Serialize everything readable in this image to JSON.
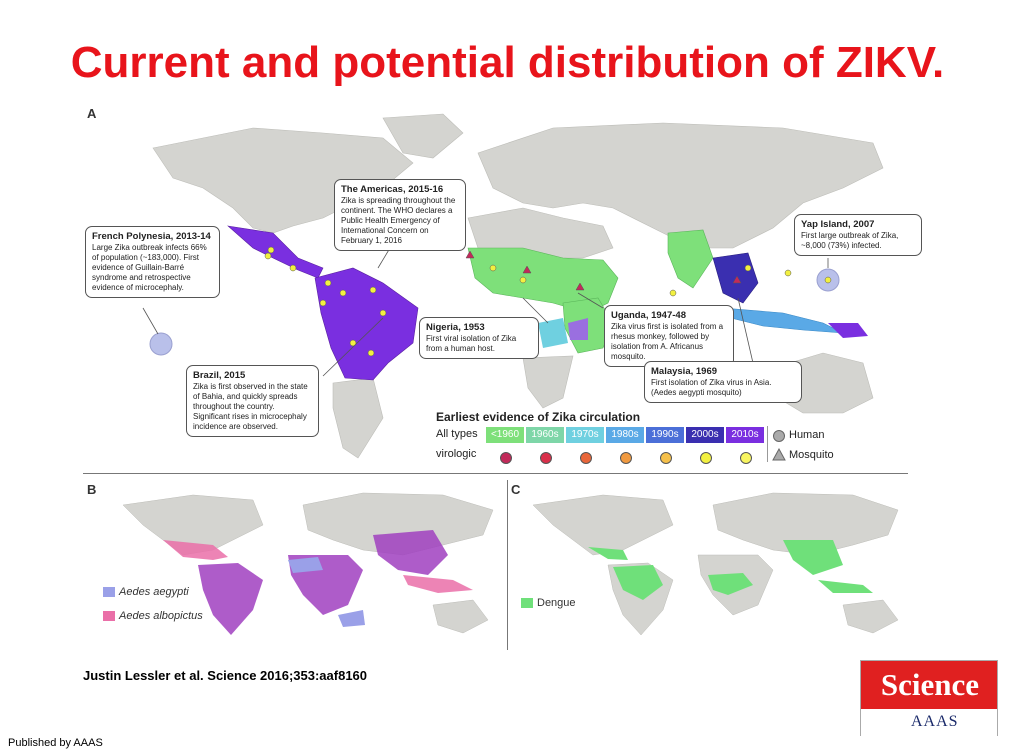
{
  "slide": {
    "title": "Current and potential distribution of ZIKV.",
    "citation": "Justin Lessler et al. Science 2016;353:aaf8160",
    "published_by": "Published by AAAS"
  },
  "panels": {
    "a_label": "A",
    "b_label": "B",
    "c_label": "C"
  },
  "callouts": {
    "americas": {
      "title": "The Americas, 2015-16",
      "body": "Zika is spreading throughout the continent. The WHO declares a Public Health Emergency of International Concern on February 1, 2016"
    },
    "polynesia": {
      "title": "French Polynesia, 2013-14",
      "body": "Large Zika outbreak infects 66% of population (~183,000). First evidence of Guillain-Barré syndrome and retrospective evidence of microcephaly."
    },
    "yap": {
      "title": "Yap Island, 2007",
      "body": "First large outbreak of Zika, ~8,000 (73%) infected."
    },
    "nigeria": {
      "title": "Nigeria, 1953",
      "body": "First viral isolation of Zika from a human host."
    },
    "uganda": {
      "title": "Uganda, 1947-48",
      "body": "Zika virus first is isolated from a rhesus monkey, followed by isolation from A. Africanus mosquito."
    },
    "brazil": {
      "title": "Brazil, 2015",
      "body": "Zika is first observed in the state of Bahia, and quickly spreads throughout the country. Significant rises in microcephaly incidence are observed."
    },
    "malaysia": {
      "title": "Malaysia, 1969",
      "body": "First isolation of Zika virus in Asia. (Aedes aegypti mosquito)"
    }
  },
  "legend": {
    "title": "Earliest evidence of Zika circulation",
    "row1_label": "All types",
    "row2_label": "virologic",
    "decades": [
      {
        "label": "<1960",
        "color": "#7ee07a"
      },
      {
        "label": "1960s",
        "color": "#7ed6a8"
      },
      {
        "label": "1970s",
        "color": "#6fd0e0"
      },
      {
        "label": "1980s",
        "color": "#5aa9e6"
      },
      {
        "label": "1990s",
        "color": "#4b6fd8"
      },
      {
        "label": "2000s",
        "color": "#3a2fb0"
      },
      {
        "label": "2010s",
        "color": "#7a2fe0"
      }
    ],
    "virologic_colors": [
      "#c22a5a",
      "#d9304a",
      "#e8663a",
      "#f09a40",
      "#f5c04a",
      "#f2f040",
      "#f8f560"
    ],
    "human_label": "Human",
    "mosquito_label": "Mosquito"
  },
  "species_legend": {
    "aegypti": {
      "label": "Aedes aegypti",
      "color": "#9aa0e8"
    },
    "albopictus": {
      "label": "Aedes albopictus",
      "color": "#ea6fa8"
    }
  },
  "dengue_legend": {
    "label": "Dengue",
    "color": "#6fe07a"
  },
  "logo": {
    "word": "Science",
    "aaas": "AAAS"
  }
}
